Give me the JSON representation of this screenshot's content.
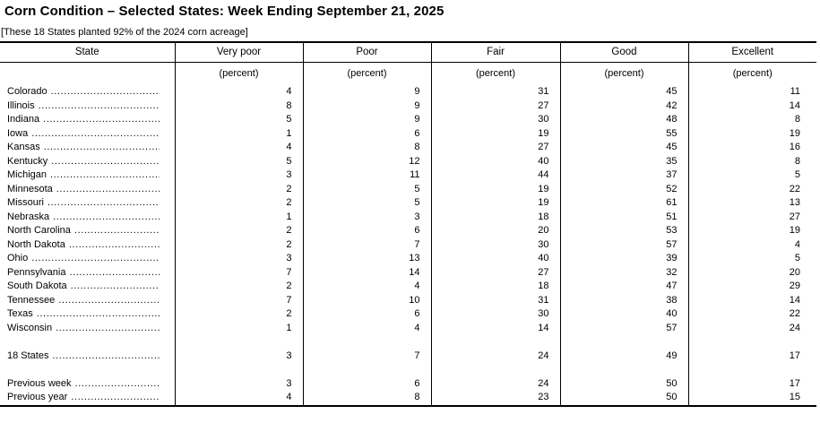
{
  "title": "Corn Condition – Selected States: Week Ending September 21, 2025",
  "subtitle": "[These 18 States planted 92% of the 2024 corn acreage]",
  "table": {
    "columns": [
      "State",
      "Very poor",
      "Poor",
      "Fair",
      "Good",
      "Excellent"
    ],
    "unit_label": "(percent)",
    "state_rows": [
      {
        "state": "Colorado",
        "values": [
          4,
          9,
          31,
          45,
          11
        ]
      },
      {
        "state": "Illinois",
        "values": [
          8,
          9,
          27,
          42,
          14
        ]
      },
      {
        "state": "Indiana",
        "values": [
          5,
          9,
          30,
          48,
          8
        ]
      },
      {
        "state": "Iowa",
        "values": [
          1,
          6,
          19,
          55,
          19
        ]
      },
      {
        "state": "Kansas",
        "values": [
          4,
          8,
          27,
          45,
          16
        ]
      },
      {
        "state": "Kentucky",
        "values": [
          5,
          12,
          40,
          35,
          8
        ]
      },
      {
        "state": "Michigan",
        "values": [
          3,
          11,
          44,
          37,
          5
        ]
      },
      {
        "state": "Minnesota",
        "values": [
          2,
          5,
          19,
          52,
          22
        ]
      },
      {
        "state": "Missouri",
        "values": [
          2,
          5,
          19,
          61,
          13
        ]
      },
      {
        "state": "Nebraska",
        "values": [
          1,
          3,
          18,
          51,
          27
        ]
      },
      {
        "state": "North Carolina",
        "values": [
          2,
          6,
          20,
          53,
          19
        ]
      },
      {
        "state": "North Dakota",
        "values": [
          2,
          7,
          30,
          57,
          4
        ]
      },
      {
        "state": "Ohio",
        "values": [
          3,
          13,
          40,
          39,
          5
        ]
      },
      {
        "state": "Pennsylvania",
        "values": [
          7,
          14,
          27,
          32,
          20
        ]
      },
      {
        "state": "South Dakota",
        "values": [
          2,
          4,
          18,
          47,
          29
        ]
      },
      {
        "state": "Tennessee",
        "values": [
          7,
          10,
          31,
          38,
          14
        ]
      },
      {
        "state": "Texas",
        "values": [
          2,
          6,
          30,
          40,
          22
        ]
      },
      {
        "state": "Wisconsin",
        "values": [
          1,
          4,
          14,
          57,
          24
        ]
      }
    ],
    "total_row": {
      "state": "18 States",
      "values": [
        3,
        7,
        24,
        49,
        17
      ]
    },
    "comparison_rows": [
      {
        "state": "Previous week",
        "values": [
          3,
          6,
          24,
          50,
          17
        ]
      },
      {
        "state": "Previous year",
        "values": [
          4,
          8,
          23,
          50,
          15
        ]
      }
    ]
  }
}
